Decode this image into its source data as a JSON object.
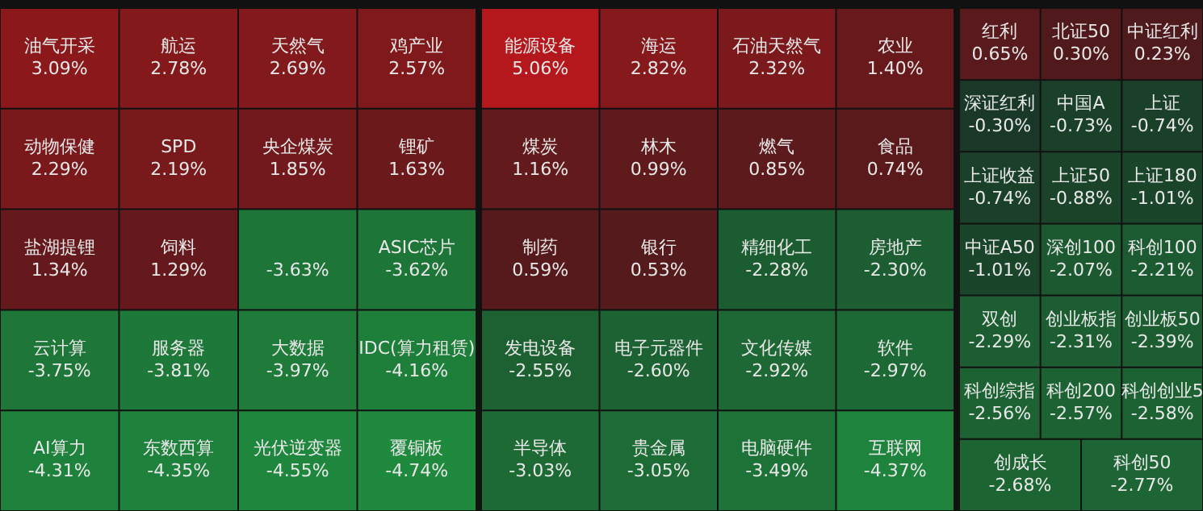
{
  "chart_data": [
    {
      "type": "other",
      "categories": [
        "油气开采",
        "航运",
        "天然气",
        "鸡产业",
        "动物保健",
        "SPD",
        "央企煤炭",
        "锂矿",
        "盐湖提锂",
        "饲料",
        null,
        "ASIC芯片",
        "云计算",
        "服务器",
        "大数据",
        "IDC(算力租赁)",
        "AI算力",
        "东数西算",
        "光伏逆变器",
        "覆铜板"
      ],
      "values": [
        3.09,
        2.78,
        2.69,
        2.57,
        2.29,
        2.19,
        1.85,
        1.63,
        1.34,
        1.29,
        -3.63,
        -3.62,
        -3.75,
        -3.81,
        -3.97,
        -4.16,
        -4.31,
        -4.35,
        -4.55,
        -4.74
      ],
      "value_labels": [
        "3.09%",
        "2.78%",
        "2.69%",
        "2.57%",
        "2.29%",
        "2.19%",
        "1.85%",
        "1.63%",
        "1.34%",
        "1.29%",
        "-3.63%",
        "-3.62%",
        "-3.75%",
        "-3.81%",
        "-3.97%",
        "-4.16%",
        "-4.31%",
        "-4.35%",
        "-4.55%",
        "-4.74%"
      ]
    },
    {
      "type": "other",
      "categories": [
        "能源设备",
        "海运",
        "石油天然气",
        "农业",
        "煤炭",
        "林木",
        "燃气",
        "食品",
        "制药",
        "银行",
        "精细化工",
        "房地产",
        "发电设备",
        "电子元器件",
        "文化传媒",
        "软件",
        "半导体",
        "贵金属",
        "电脑硬件",
        "互联网"
      ],
      "values": [
        5.06,
        2.82,
        2.32,
        1.4,
        1.16,
        0.99,
        0.85,
        0.74,
        0.59,
        0.53,
        -2.28,
        -2.3,
        -2.55,
        -2.6,
        -2.92,
        -2.97,
        -3.03,
        -3.05,
        -3.49,
        -4.37
      ],
      "value_labels": [
        "5.06%",
        "2.82%",
        "2.32%",
        "1.40%",
        "1.16%",
        "0.99%",
        "0.85%",
        "0.74%",
        "0.59%",
        "0.53%",
        "-2.28%",
        "-2.30%",
        "-2.55%",
        "-2.60%",
        "-2.92%",
        "-2.97%",
        "-3.03%",
        "-3.05%",
        "-3.49%",
        "-4.37%"
      ]
    },
    {
      "type": "other",
      "categories": [
        "红利",
        "北证50",
        "中证红利",
        "深证红利",
        "中国A",
        "上证",
        "上证收益",
        "上证50",
        "上证180",
        "中证A50",
        "深创100",
        "科创100",
        "双创",
        "创业板指",
        "创业板50",
        "科创综指",
        "科创200",
        "科创创业5",
        "创成长",
        "科创50"
      ],
      "values": [
        0.65,
        0.3,
        0.23,
        -0.3,
        -0.73,
        -0.74,
        -0.74,
        -0.88,
        -1.01,
        -1.01,
        -2.07,
        -2.21,
        -2.29,
        -2.31,
        -2.39,
        -2.56,
        -2.57,
        -2.58,
        -2.68,
        -2.77
      ],
      "value_labels": [
        "0.65%",
        "0.30%",
        "0.23%",
        "-0.30%",
        "-0.73%",
        "-0.74%",
        "-0.74%",
        "-0.88%",
        "-1.01%",
        "-1.01%",
        "-2.07%",
        "-2.21%",
        "-2.29%",
        "-2.31%",
        "-2.39%",
        "-2.56%",
        "-2.57%",
        "-2.58%",
        "-2.68%",
        "-2.77%"
      ]
    }
  ]
}
